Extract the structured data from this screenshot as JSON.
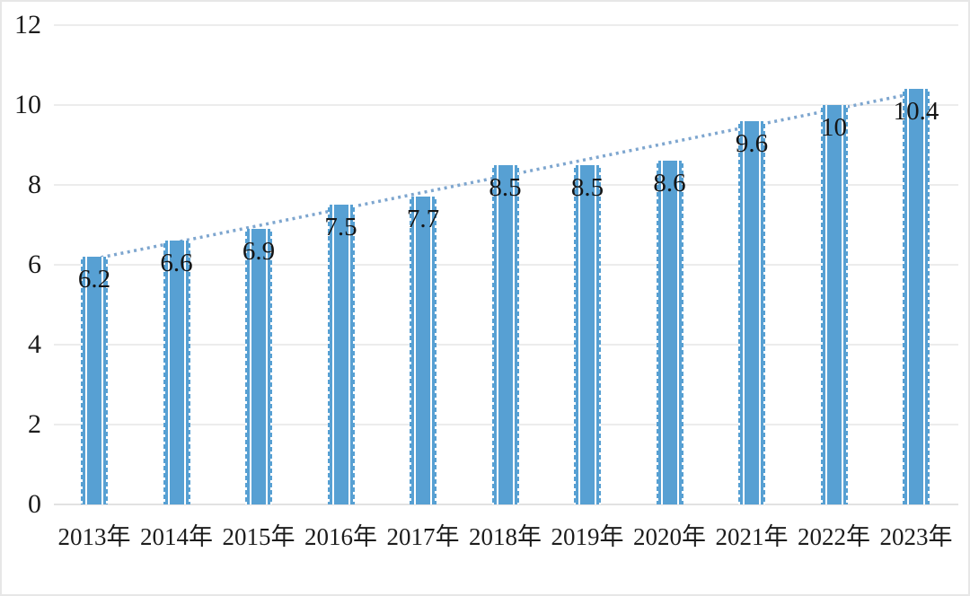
{
  "chart_data": {
    "type": "bar",
    "title": "",
    "xlabel": "",
    "ylabel": "",
    "categories": [
      "2013年",
      "2014年",
      "2015年",
      "2016年",
      "2017年",
      "2018年",
      "2019年",
      "2020年",
      "2021年",
      "2022年",
      "2023年"
    ],
    "values": [
      6.2,
      6.6,
      6.9,
      7.5,
      7.7,
      8.5,
      8.5,
      8.6,
      9.6,
      10,
      10.4
    ],
    "data_labels": [
      "6.2",
      "6.6",
      "6.9",
      "7.5",
      "7.7",
      "8.5",
      "8.5",
      "8.6",
      "9.6",
      "10",
      "10.4"
    ],
    "ylim": [
      0,
      12
    ],
    "yticks": [
      0,
      2,
      4,
      6,
      8,
      10,
      12
    ],
    "ytick_labels": [
      "0",
      "2",
      "4",
      "6",
      "8",
      "10",
      "12"
    ],
    "grid": true,
    "legend": "none",
    "trendline": {
      "type": "linear",
      "style": "dotted"
    },
    "colors": {
      "bar": "#57a0d3",
      "bar_stripe": "#ffffff",
      "trendline": "#7ea6cf",
      "gridline": "#ececec",
      "text": "#1c1c1c",
      "background": "#ffffff",
      "frame_border": "#e7e7e7"
    }
  }
}
